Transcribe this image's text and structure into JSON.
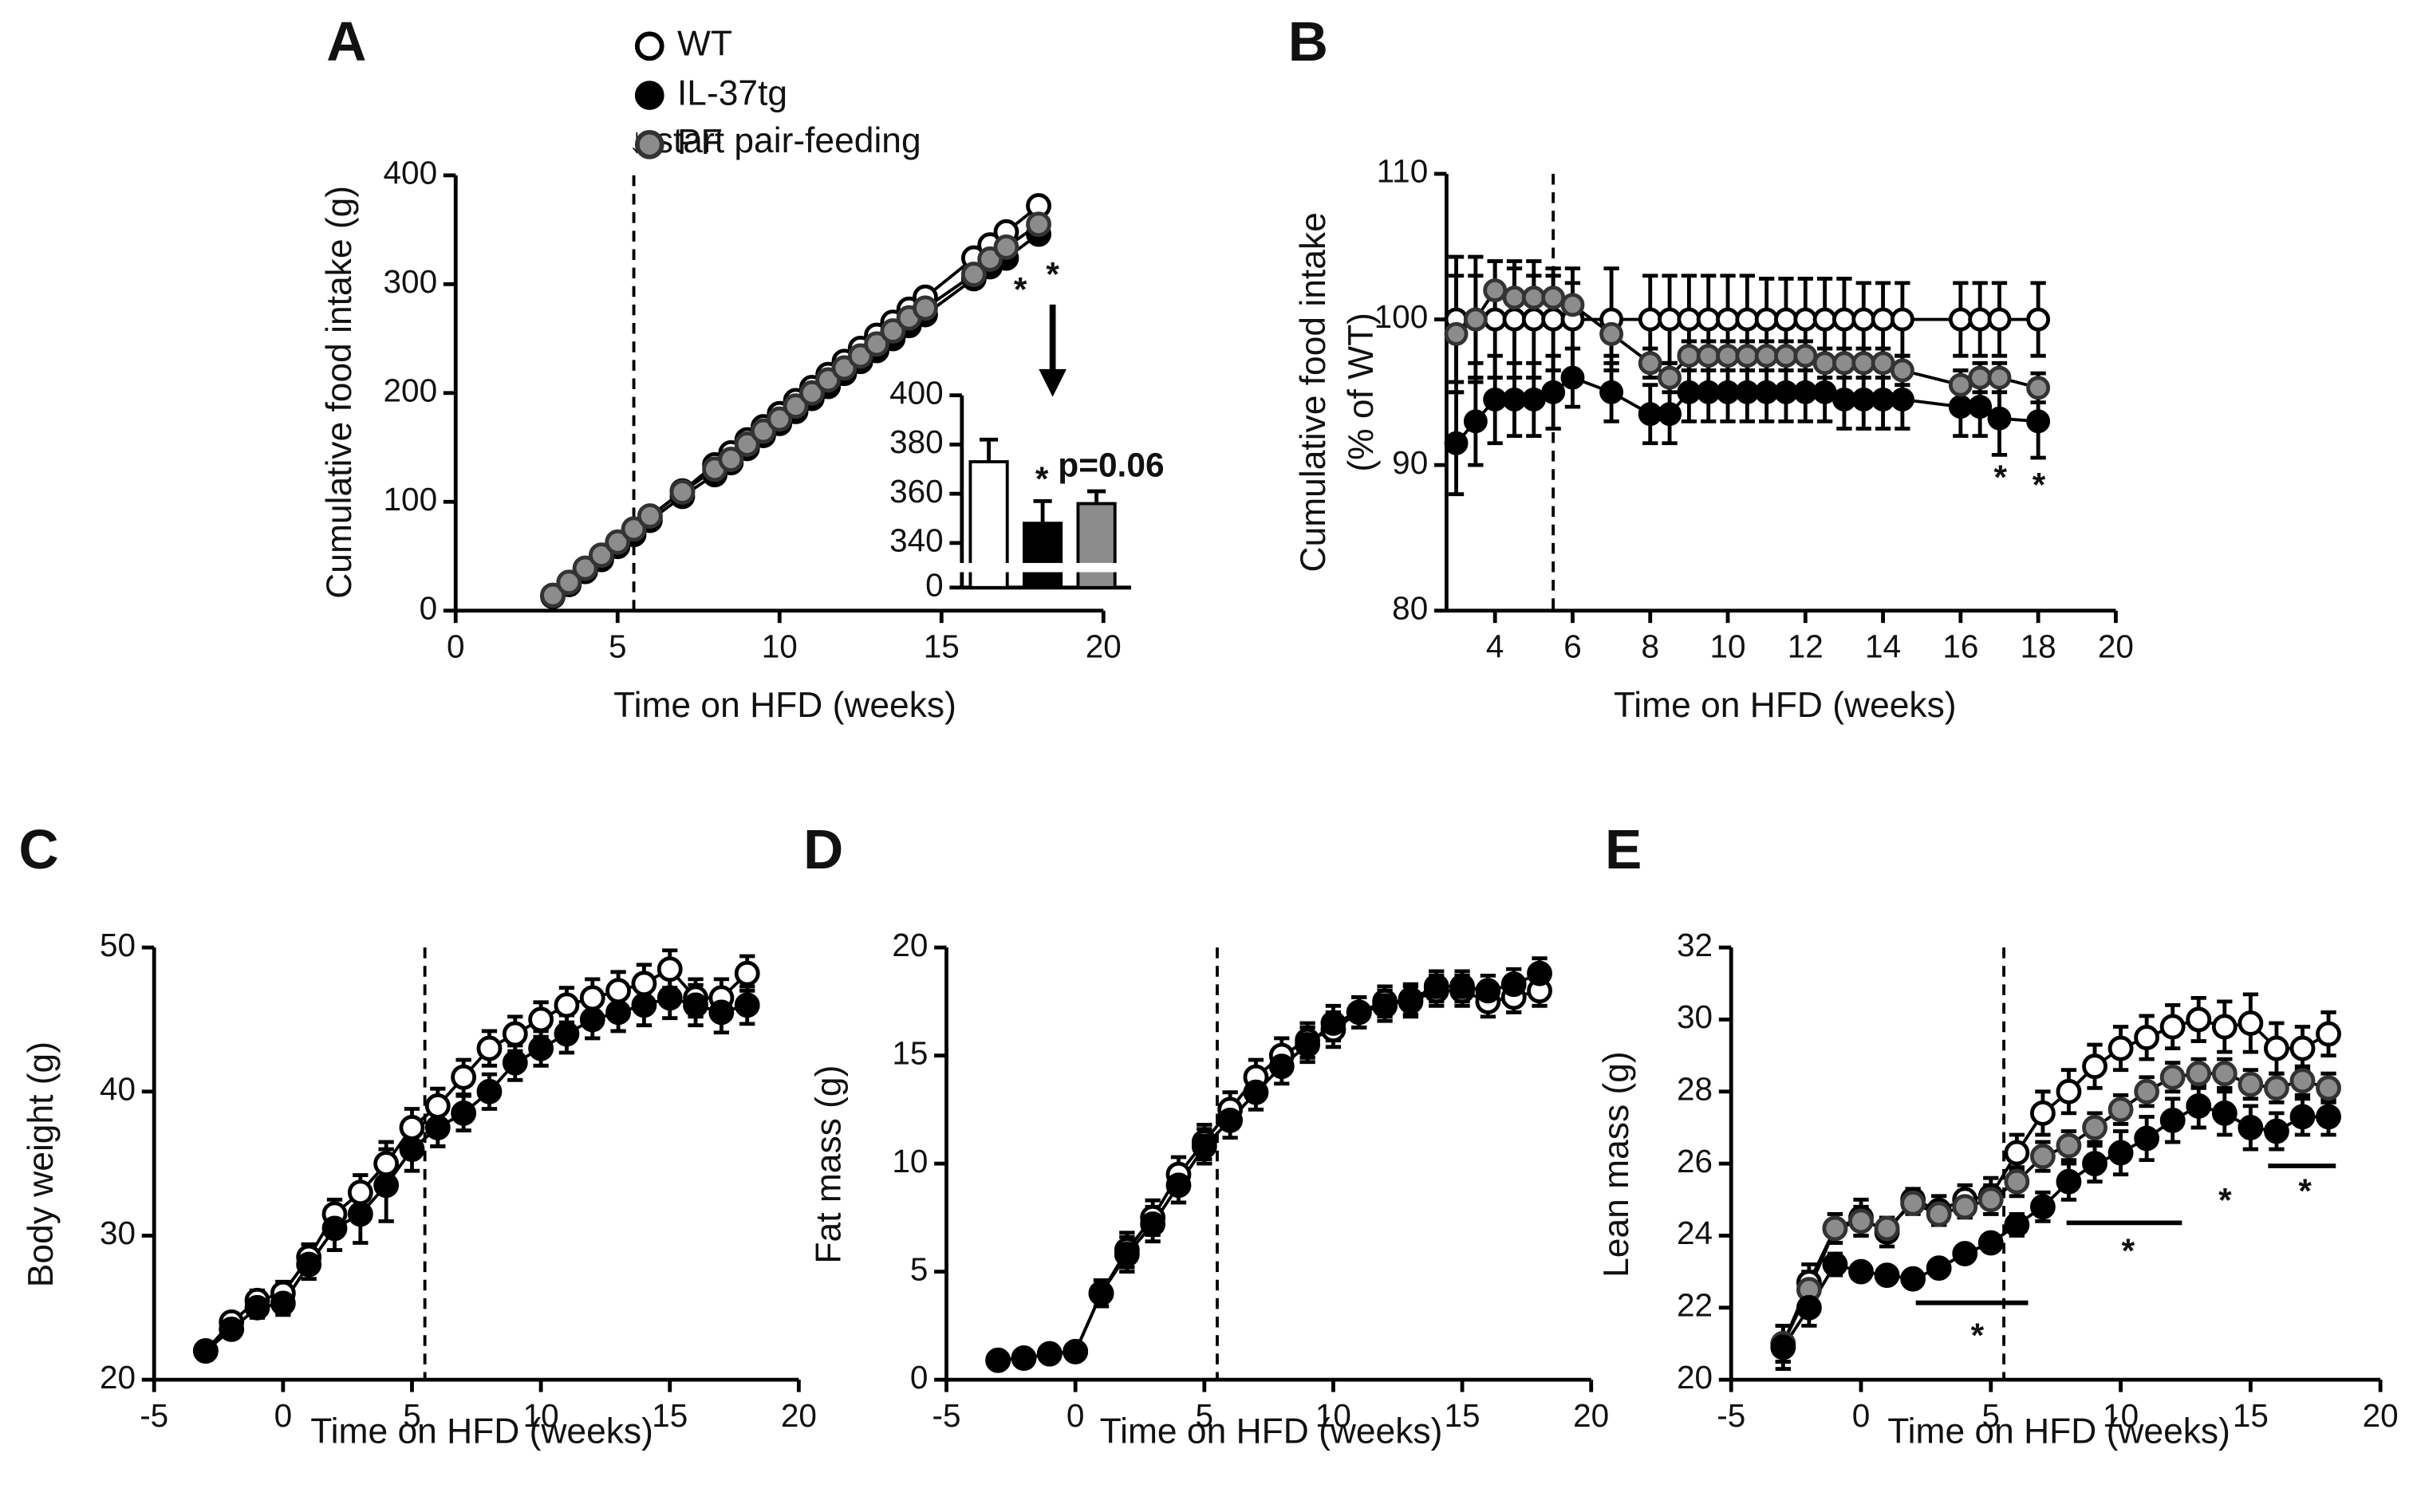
{
  "chart_data": [
    {
      "type": "line",
      "title": "A",
      "xlabel": "Time on HFD (weeks)",
      "ylabel": "Cumulative food intake  (g)",
      "xlim": [
        0,
        20
      ],
      "xticks": [
        0,
        5,
        10,
        15,
        20
      ],
      "ylim": [
        0,
        400
      ],
      "yticks": [
        0,
        100,
        200,
        300,
        400
      ],
      "vline": 5.5,
      "annotations": [
        "↓ start pair-feeding",
        "*",
        "*"
      ],
      "x": [
        3,
        3.5,
        4,
        4.5,
        5,
        5.5,
        6,
        7,
        8,
        8.5,
        9,
        9.5,
        10,
        10.5,
        11,
        11.5,
        12,
        12.5,
        13,
        13.5,
        14,
        14.5,
        16,
        16.5,
        17,
        18
      ],
      "series": [
        {
          "name": "WT",
          "color": "#ffffff",
          "values": [
            14,
            26,
            38,
            50,
            62,
            74,
            86,
            110,
            134,
            145,
            157,
            169,
            181,
            193,
            205,
            217,
            229,
            241,
            253,
            265,
            277,
            288,
            324,
            336,
            348,
            372
          ]
        },
        {
          "name": "IL-37tg",
          "color": "#000000",
          "values": [
            13,
            24,
            36,
            47,
            59,
            70,
            83,
            105,
            125,
            136,
            149,
            161,
            172,
            183,
            195,
            206,
            218,
            229,
            239,
            250,
            262,
            272,
            305,
            316,
            324,
            346
          ]
        },
        {
          "name": "PF",
          "color": "#8c8c8c",
          "values": [
            14,
            26,
            39,
            51,
            63,
            75,
            87,
            109,
            130,
            139,
            153,
            165,
            176,
            188,
            200,
            212,
            223,
            234,
            245,
            257,
            269,
            278,
            309,
            323,
            334,
            355
          ]
        }
      ]
    },
    {
      "type": "bar",
      "categories": [
        null,
        null,
        null
      ],
      "ylim": [
        0,
        400
      ],
      "axis_break": [
        10,
        330
      ],
      "yticks": [
        0,
        340,
        360,
        380,
        400
      ],
      "annotations": [
        "*",
        "p=0.06"
      ],
      "values": [
        373,
        348,
        356
      ],
      "errors": [
        9,
        9,
        5
      ],
      "colors": [
        "#ffffff",
        "#000000",
        "#8c8c8c"
      ]
    },
    {
      "type": "line",
      "title": "B",
      "xlabel": "Time on HFD (weeks)",
      "ylabel": [
        "Cumulative food intake",
        "(% of WT)"
      ],
      "xlim": [
        2.75,
        20
      ],
      "xticks": [
        4,
        6,
        8,
        10,
        12,
        14,
        16,
        18,
        20
      ],
      "ylim": [
        80,
        110
      ],
      "yticks": [
        80,
        90,
        100,
        110
      ],
      "vline": 5.5,
      "annotations": [
        "*",
        "*"
      ],
      "x": [
        3,
        3.5,
        4,
        4.5,
        5,
        5.5,
        6,
        7,
        8,
        8.5,
        9,
        9.5,
        10,
        10.5,
        11,
        11.5,
        12,
        12.5,
        13,
        13.5,
        14,
        14.5,
        16,
        16.5,
        17,
        18
      ],
      "series": [
        {
          "color": "#ffffff",
          "values": [
            100,
            100,
            100,
            100,
            100,
            100,
            100,
            100,
            100,
            100,
            100,
            100,
            100,
            100,
            100,
            100,
            100,
            100,
            100,
            100,
            100,
            100,
            100,
            100,
            100,
            100
          ],
          "errors": [
            4.3,
            4.3,
            4,
            4,
            4,
            3.5,
            3.5,
            3.5,
            3,
            3,
            3,
            3,
            3,
            3,
            2.8,
            2.8,
            2.8,
            2.8,
            2.8,
            2.5,
            2.5,
            2.5,
            2.5,
            2.5,
            2.5,
            2.5
          ]
        },
        {
          "color": "#000000",
          "values": [
            91.5,
            93,
            94.5,
            94.5,
            94.5,
            95,
            96,
            95,
            93.5,
            93.5,
            95,
            95,
            95,
            95,
            95,
            95,
            95,
            95,
            94.5,
            94.5,
            94.5,
            94.5,
            94,
            94,
            93.2,
            93
          ],
          "errors": [
            3.5,
            3,
            3,
            2.5,
            2.5,
            2.5,
            2,
            2,
            2,
            2,
            2,
            2,
            2,
            2,
            2,
            2,
            2,
            2,
            2,
            2,
            2,
            2,
            2,
            2,
            2.5,
            2.5
          ]
        },
        {
          "color": "#8c8c8c",
          "values": [
            99,
            100,
            102,
            101.5,
            101.5,
            101.5,
            101,
            99,
            97,
            96,
            97.5,
            97.5,
            97.5,
            97.5,
            97.5,
            97.5,
            97.5,
            97,
            97,
            97,
            97,
            96.5,
            95.5,
            96,
            96,
            95.3
          ],
          "errors": [
            4,
            3,
            2,
            2,
            1.5,
            1.5,
            1.5,
            1.5,
            1,
            1,
            1,
            1,
            1,
            1,
            1,
            1,
            1,
            1,
            1,
            1,
            1,
            1,
            1,
            1,
            1,
            1
          ]
        }
      ]
    },
    {
      "type": "line",
      "title": "C",
      "xlabel": "Time on HFD (weeks)",
      "ylabel": "Body weight (g)",
      "xlim": [
        -5,
        20
      ],
      "xticks": [
        -5,
        0,
        5,
        10,
        15,
        20
      ],
      "ylim": [
        20,
        50
      ],
      "yticks": [
        20,
        30,
        40,
        50
      ],
      "vline": 5.5,
      "x": [
        -3,
        -2,
        -1,
        0,
        1,
        2,
        3,
        4,
        5,
        6,
        7,
        8,
        9,
        10,
        11,
        12,
        13,
        14,
        15,
        16,
        17,
        18
      ],
      "series": [
        {
          "color": "#ffffff",
          "values": [
            22,
            24,
            25.5,
            26,
            28.5,
            31.5,
            33,
            35,
            37.5,
            39,
            41,
            43,
            44,
            45,
            46,
            46.5,
            47,
            47.5,
            48.5,
            46.5,
            46.5,
            48.2
          ],
          "errors": [
            0.6,
            0.6,
            0.7,
            0.8,
            0.9,
            1,
            1.2,
            1.5,
            1.3,
            1.2,
            1.2,
            1.2,
            1.2,
            1.2,
            1.2,
            1.3,
            1.3,
            1.3,
            1.3,
            1.3,
            1.3,
            1.2
          ]
        },
        {
          "color": "#000000",
          "values": [
            22,
            23.5,
            25,
            25.3,
            28,
            30.5,
            31.5,
            33.5,
            36,
            37.5,
            38.5,
            40,
            42,
            43,
            44,
            45,
            45.5,
            46,
            46.5,
            46,
            45.5,
            46
          ],
          "errors": [
            0.6,
            0.6,
            0.7,
            0.8,
            1,
            1.5,
            2,
            2.5,
            1.5,
            1.3,
            1.2,
            1.2,
            1.2,
            1.2,
            1.3,
            1.3,
            1.3,
            1.4,
            1.4,
            1.4,
            1.4,
            1.3
          ]
        }
      ]
    },
    {
      "type": "line",
      "title": "D",
      "xlabel": "Time on HFD (weeks)",
      "ylabel": "Fat mass (g)",
      "xlim": [
        -5,
        20
      ],
      "xticks": [
        -5,
        0,
        5,
        10,
        15,
        20
      ],
      "ylim": [
        0,
        20
      ],
      "yticks": [
        0,
        5,
        10,
        15,
        20
      ],
      "vline": 5.5,
      "x": [
        -3,
        -2,
        -1,
        0,
        1,
        2,
        3,
        4,
        5,
        6,
        7,
        8,
        9,
        10,
        11,
        12,
        13,
        14,
        15,
        16,
        17,
        18
      ],
      "series": [
        {
          "color": "#ffffff",
          "values": [
            0.9,
            1,
            1.2,
            1.3,
            4,
            6,
            7.5,
            9.5,
            11,
            12.5,
            14,
            15,
            15.7,
            16.2,
            17,
            17.5,
            17.5,
            18,
            18,
            17.5,
            17.7,
            18
          ],
          "errors": [
            0.2,
            0.2,
            0.2,
            0.2,
            0.6,
            0.8,
            0.8,
            0.8,
            0.8,
            0.8,
            0.8,
            0.8,
            0.8,
            0.8,
            0.7,
            0.7,
            0.7,
            0.7,
            0.7,
            0.7,
            0.7,
            0.7
          ]
        },
        {
          "color": "#000000",
          "values": [
            0.9,
            1,
            1.2,
            1.3,
            4,
            5.8,
            7.2,
            9,
            10.8,
            12,
            13.3,
            14.5,
            15.5,
            16.5,
            17,
            17.3,
            17.6,
            18.2,
            18.2,
            18,
            18.3,
            18.8
          ],
          "errors": [
            0.2,
            0.2,
            0.2,
            0.2,
            0.6,
            0.8,
            0.8,
            0.8,
            0.8,
            0.8,
            0.8,
            0.8,
            0.8,
            0.8,
            0.7,
            0.7,
            0.7,
            0.7,
            0.7,
            0.7,
            0.7,
            0.7
          ]
        }
      ]
    },
    {
      "type": "line",
      "title": "E",
      "xlabel": "Time on HFD (weeks)",
      "ylabel": "Lean mass (g)",
      "xlim": [
        -5,
        20
      ],
      "xticks": [
        -5,
        0,
        5,
        10,
        15,
        20
      ],
      "ylim": [
        20,
        32
      ],
      "yticks": [
        20,
        22,
        24,
        26,
        28,
        30,
        32
      ],
      "vline": 5.5,
      "annotations": [
        "*",
        "*",
        "*",
        "*"
      ],
      "x": [
        -3,
        -2,
        -1,
        0,
        1,
        2,
        3,
        4,
        5,
        6,
        7,
        8,
        9,
        10,
        11,
        12,
        13,
        14,
        15,
        16,
        17,
        18
      ],
      "series": [
        {
          "color": "#ffffff",
          "values": [
            21,
            22.7,
            24.2,
            24.5,
            24.1,
            25,
            24.7,
            25,
            25.1,
            26.3,
            27.4,
            28,
            28.7,
            29.2,
            29.5,
            29.8,
            30,
            29.8,
            29.9,
            29.2,
            29.2,
            29.6
          ],
          "errors": [
            0.5,
            0.5,
            0.4,
            0.5,
            0.4,
            0.3,
            0.4,
            0.4,
            0.5,
            0.5,
            0.6,
            0.6,
            0.6,
            0.6,
            0.6,
            0.6,
            0.6,
            0.7,
            0.8,
            0.7,
            0.6,
            0.6
          ]
        },
        {
          "color": "#8c8c8c",
          "values": [
            21,
            22.5,
            24.2,
            24.4,
            24.2,
            24.9,
            24.6,
            24.8,
            25,
            25.5,
            26.2,
            26.5,
            27,
            27.5,
            28,
            28.4,
            28.5,
            28.5,
            28.2,
            28.1,
            28.3,
            28.1
          ],
          "errors": [
            0.5,
            0.5,
            0.4,
            0.4,
            0.3,
            0.3,
            0.3,
            0.3,
            0.4,
            0.4,
            0.4,
            0.4,
            0.4,
            0.4,
            0.4,
            0.4,
            0.4,
            0.4,
            0.4,
            0.4,
            0.4,
            0.4
          ]
        },
        {
          "color": "#000000",
          "values": [
            20.9,
            22,
            23.2,
            23,
            22.9,
            22.8,
            23.1,
            23.5,
            23.8,
            24.3,
            24.8,
            25.5,
            26,
            26.3,
            26.7,
            27.2,
            27.6,
            27.4,
            27,
            26.9,
            27.3,
            27.3
          ],
          "errors": [
            0.6,
            0.5,
            0.3,
            0.2,
            0.2,
            0.2,
            0.2,
            0.2,
            0.2,
            0.3,
            0.4,
            0.5,
            0.5,
            0.6,
            0.6,
            0.6,
            0.6,
            0.6,
            0.6,
            0.5,
            0.5,
            0.5
          ]
        }
      ]
    }
  ]
}
